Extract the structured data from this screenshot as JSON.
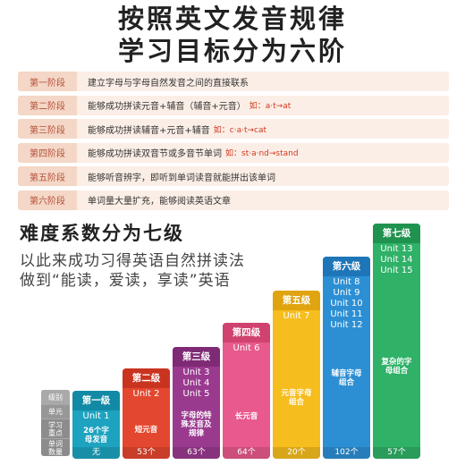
{
  "title_line1": "按照英文发音规律",
  "title_line2": "学习目标分为六阶",
  "stages": [
    {
      "label": "第一阶段",
      "desc": "建立字母与字母自然发音之间的直接联系",
      "example": ""
    },
    {
      "label": "第二阶段",
      "desc": "能够成功拼读元音+辅音（辅音+元音）",
      "example": "如：a·t→at"
    },
    {
      "label": "第三阶段",
      "desc": "能够成功拼读辅音+元音+辅音",
      "example": "如：c·a·t→cat"
    },
    {
      "label": "第四阶段",
      "desc": "能够成功拼读双音节或多音节单词",
      "example": "如：st·a·nd→stand"
    },
    {
      "label": "第五阶段",
      "desc": "能够听音辨字，即听到单词读音就能拼出该单词",
      "example": ""
    },
    {
      "label": "第六阶段",
      "desc": "单词量大量扩充，能够阅读英语文章",
      "example": ""
    }
  ],
  "section_title": "难度系数分为七级",
  "subtitle_line1": "以此来成功习得英语自然拼读法",
  "subtitle_line2": "做到“能读，爱读，享读”英语",
  "legend": {
    "level": "级别",
    "unit": "单元",
    "focus": "学习重点",
    "count": "单词数量"
  },
  "levels": [
    {
      "name": "第一级",
      "units": [
        "Unit 1"
      ],
      "focus": "26个字母发音",
      "count": "无",
      "color": "#1da3bf",
      "header": "#128aa5"
    },
    {
      "name": "第二级",
      "units": [
        "Unit 2"
      ],
      "focus": "短元音",
      "count": "53个",
      "color": "#e4472f",
      "header": "#c93420"
    },
    {
      "name": "第三级",
      "units": [
        "Unit 3",
        "Unit 4",
        "Unit 5"
      ],
      "focus": "字母的特殊发音及规律",
      "count": "63个",
      "color": "#9a3a8f",
      "header": "#7f2a75"
    },
    {
      "name": "第四级",
      "units": [
        "Unit 6"
      ],
      "focus": "长元音",
      "count": "64个",
      "color": "#e8598d",
      "header": "#d0426f"
    },
    {
      "name": "第五级",
      "units": [
        "Unit 7"
      ],
      "focus": "元音字母组合",
      "count": "20个",
      "color": "#f6bd1e",
      "header": "#e0a410"
    },
    {
      "name": "第六级",
      "units": [
        "Unit 8",
        "Unit 9",
        "Unit 10",
        "Unit 11",
        "Unit 12"
      ],
      "focus": "辅音字母组合",
      "count": "102个",
      "color": "#2d8fd3",
      "header": "#1e76b8"
    },
    {
      "name": "第七级",
      "units": [
        "Unit 13",
        "Unit 14",
        "Unit 15"
      ],
      "focus": "复杂的字母组合",
      "count": "57个",
      "color": "#2fb168",
      "header": "#20924f"
    }
  ]
}
